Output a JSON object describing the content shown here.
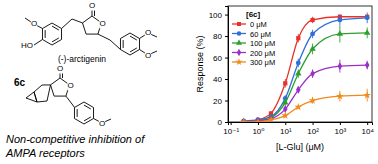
{
  "chart_data": {
    "type": "line",
    "x_label": "[L-Glu] (μM)",
    "y_label": "Response (%)",
    "legend_title": "[6c]",
    "log": "x",
    "legend": "upper left",
    "xlim": [
      0.08,
      15000
    ],
    "xticks": [
      {
        "value": 0.1,
        "label": "10⁻¹"
      },
      {
        "value": 1,
        "label": "10⁰"
      },
      {
        "value": 10,
        "label": "10¹"
      },
      {
        "value": 100,
        "label": "10²"
      },
      {
        "value": 1000,
        "label": "10³"
      },
      {
        "value": 10000,
        "label": "10⁴"
      }
    ],
    "ylim": [
      0,
      108
    ],
    "yticks": [
      0,
      20,
      40,
      60,
      80,
      100
    ],
    "x": [
      0.3,
      1,
      3,
      10,
      30,
      100,
      1000,
      10000
    ],
    "series": [
      {
        "name": "0 μM",
        "color": "#e8312a",
        "marker": "square",
        "values": [
          0,
          2,
          8,
          36,
          78,
          95,
          98,
          98
        ],
        "errors": [
          1,
          1,
          2,
          4,
          4,
          3,
          2,
          2
        ]
      },
      {
        "name": "60 μM",
        "color": "#2f6fd6",
        "marker": "circle",
        "values": [
          1,
          2,
          5,
          22,
          55,
          82,
          95,
          97
        ],
        "errors": [
          1,
          1,
          2,
          3,
          4,
          4,
          5,
          5
        ]
      },
      {
        "name": "100 μM",
        "color": "#2ca02c",
        "marker": "triangle",
        "values": [
          0,
          1,
          4,
          18,
          45,
          68,
          82,
          83
        ],
        "errors": [
          1,
          1,
          1,
          3,
          4,
          5,
          8,
          5
        ]
      },
      {
        "name": "200 μM",
        "color": "#9b30c8",
        "marker": "diamond",
        "values": [
          0,
          1,
          3,
          12,
          30,
          45,
          52,
          53
        ],
        "errors": [
          1,
          1,
          1,
          2,
          3,
          4,
          6,
          4
        ]
      },
      {
        "name": "300 μM",
        "color": "#f08a1c",
        "marker": "star",
        "values": [
          0,
          0,
          2,
          6,
          14,
          20,
          24,
          25
        ],
        "errors": [
          1,
          1,
          1,
          2,
          2,
          3,
          5,
          6
        ]
      }
    ]
  },
  "molecules": [
    {
      "name": "(-)-arctigenin",
      "atom_labels": [
        "O",
        "O",
        "HO",
        "O",
        "O",
        "O"
      ]
    },
    {
      "name": "6c",
      "atom_labels": [
        "O",
        "O",
        "O"
      ]
    }
  ],
  "caption_lines": [
    "Non-competitive inhibition of",
    "AMPA receptors"
  ]
}
